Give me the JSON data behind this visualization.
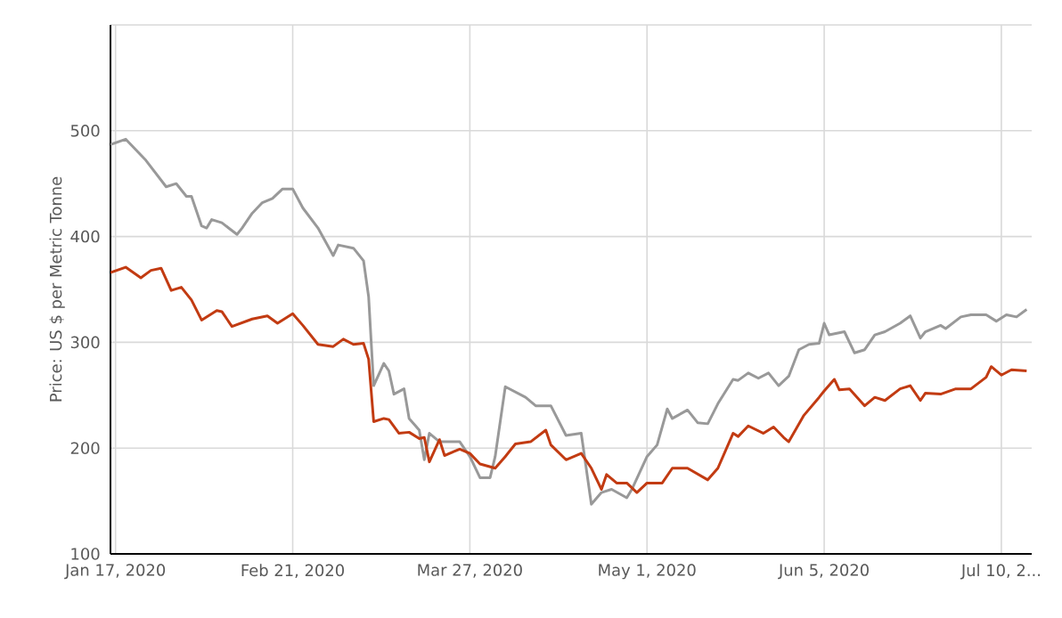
{
  "chart_data": {
    "type": "line",
    "ylabel": "Price: US $ per Metric Tonne",
    "xlim": [
      "2020-01-16",
      "2020-07-16"
    ],
    "xticks": [
      {
        "value": "2020-01-17",
        "label": "Jan 17, 2020"
      },
      {
        "value": "2020-02-21",
        "label": "Feb 21, 2020"
      },
      {
        "value": "2020-03-27",
        "label": "Mar 27, 2020"
      },
      {
        "value": "2020-05-01",
        "label": "May 1, 2020"
      },
      {
        "value": "2020-06-05",
        "label": "Jun 5, 2020"
      },
      {
        "value": "2020-07-10",
        "label": "Jul 10, 2..."
      }
    ],
    "ylim": [
      100,
      600
    ],
    "yticks": [
      100,
      200,
      300,
      400,
      500,
      {
        "value": 600,
        "label": null
      }
    ],
    "grid": true,
    "marker": "none",
    "line_style": "solid",
    "series": [
      {
        "color": "#999999",
        "x": [
          "2020-01-16",
          "2020-01-19",
          "2020-01-23",
          "2020-01-27",
          "2020-01-29",
          "2020-01-31",
          "2020-02-01",
          "2020-02-03",
          "2020-02-04",
          "2020-02-05",
          "2020-02-07",
          "2020-02-10",
          "2020-02-11",
          "2020-02-13",
          "2020-02-15",
          "2020-02-17",
          "2020-02-19",
          "2020-02-21",
          "2020-02-23",
          "2020-02-26",
          "2020-02-29",
          "2020-03-01",
          "2020-03-04",
          "2020-03-06",
          "2020-03-07",
          "2020-03-08",
          "2020-03-10",
          "2020-03-11",
          "2020-03-12",
          "2020-03-14",
          "2020-03-15",
          "2020-03-17",
          "2020-03-18",
          "2020-03-19",
          "2020-03-21",
          "2020-03-25",
          "2020-03-27",
          "2020-03-29",
          "2020-03-31",
          "2020-04-01",
          "2020-04-03",
          "2020-04-07",
          "2020-04-09",
          "2020-04-12",
          "2020-04-15",
          "2020-04-18",
          "2020-04-20",
          "2020-04-22",
          "2020-04-24",
          "2020-04-27",
          "2020-04-28",
          "2020-05-01",
          "2020-05-03",
          "2020-05-05",
          "2020-05-06",
          "2020-05-09",
          "2020-05-11",
          "2020-05-13",
          "2020-05-15",
          "2020-05-18",
          "2020-05-19",
          "2020-05-21",
          "2020-05-23",
          "2020-05-25",
          "2020-05-27",
          "2020-05-29",
          "2020-05-31",
          "2020-06-02",
          "2020-06-04",
          "2020-06-05",
          "2020-06-06",
          "2020-06-09",
          "2020-06-11",
          "2020-06-13",
          "2020-06-15",
          "2020-06-17",
          "2020-06-20",
          "2020-06-22",
          "2020-06-24",
          "2020-06-25",
          "2020-06-28",
          "2020-06-29",
          "2020-07-02",
          "2020-07-04",
          "2020-07-07",
          "2020-07-09",
          "2020-07-11",
          "2020-07-13",
          "2020-07-15"
        ],
        "values": [
          487,
          492,
          472,
          447,
          450,
          438,
          438,
          410,
          408,
          416,
          413,
          402,
          408,
          422,
          432,
          436,
          445,
          445,
          427,
          408,
          382,
          392,
          389,
          377,
          343,
          259,
          280,
          273,
          251,
          256,
          228,
          217,
          189,
          214,
          206,
          206,
          192,
          172,
          172,
          192,
          258,
          248,
          240,
          240,
          212,
          214,
          147,
          158,
          161,
          153,
          161,
          192,
          203,
          237,
          228,
          236,
          224,
          223,
          242,
          265,
          264,
          271,
          266,
          271,
          259,
          268,
          293,
          298,
          299,
          318,
          307,
          310,
          290,
          293,
          307,
          310,
          318,
          325,
          304,
          310,
          316,
          313,
          324,
          326,
          326,
          320,
          326,
          324,
          331
        ]
      },
      {
        "color": "#c23b12",
        "x": [
          "2020-01-16",
          "2020-01-19",
          "2020-01-22",
          "2020-01-24",
          "2020-01-26",
          "2020-01-28",
          "2020-01-30",
          "2020-02-01",
          "2020-02-03",
          "2020-02-06",
          "2020-02-07",
          "2020-02-09",
          "2020-02-13",
          "2020-02-16",
          "2020-02-18",
          "2020-02-21",
          "2020-02-23",
          "2020-02-26",
          "2020-02-29",
          "2020-03-02",
          "2020-03-04",
          "2020-03-06",
          "2020-03-07",
          "2020-03-08",
          "2020-03-10",
          "2020-03-11",
          "2020-03-13",
          "2020-03-15",
          "2020-03-17",
          "2020-03-18",
          "2020-03-19",
          "2020-03-21",
          "2020-03-22",
          "2020-03-25",
          "2020-03-27",
          "2020-03-29",
          "2020-04-01",
          "2020-04-03",
          "2020-04-05",
          "2020-04-08",
          "2020-04-11",
          "2020-04-12",
          "2020-04-15",
          "2020-04-18",
          "2020-04-20",
          "2020-04-22",
          "2020-04-23",
          "2020-04-25",
          "2020-04-27",
          "2020-04-29",
          "2020-05-01",
          "2020-05-04",
          "2020-05-06",
          "2020-05-09",
          "2020-05-13",
          "2020-05-15",
          "2020-05-18",
          "2020-05-19",
          "2020-05-21",
          "2020-05-24",
          "2020-05-26",
          "2020-05-28",
          "2020-05-29",
          "2020-06-01",
          "2020-06-04",
          "2020-06-05",
          "2020-06-07",
          "2020-06-08",
          "2020-06-10",
          "2020-06-13",
          "2020-06-15",
          "2020-06-17",
          "2020-06-20",
          "2020-06-22",
          "2020-06-24",
          "2020-06-25",
          "2020-06-28",
          "2020-07-01",
          "2020-07-04",
          "2020-07-07",
          "2020-07-08",
          "2020-07-10",
          "2020-07-12",
          "2020-07-15"
        ],
        "values": [
          366,
          371,
          361,
          368,
          370,
          349,
          352,
          340,
          321,
          330,
          329,
          315,
          322,
          325,
          318,
          327,
          316,
          298,
          296,
          303,
          298,
          299,
          284,
          225,
          228,
          227,
          214,
          215,
          209,
          210,
          187,
          208,
          193,
          199,
          195,
          185,
          181,
          192,
          204,
          206,
          217,
          203,
          189,
          195,
          181,
          161,
          175,
          167,
          167,
          158,
          167,
          167,
          181,
          181,
          170,
          181,
          214,
          211,
          221,
          214,
          220,
          210,
          206,
          231,
          248,
          254,
          265,
          255,
          256,
          240,
          248,
          245,
          256,
          259,
          245,
          252,
          251,
          256,
          256,
          267,
          277,
          269,
          274,
          273
        ]
      }
    ]
  }
}
